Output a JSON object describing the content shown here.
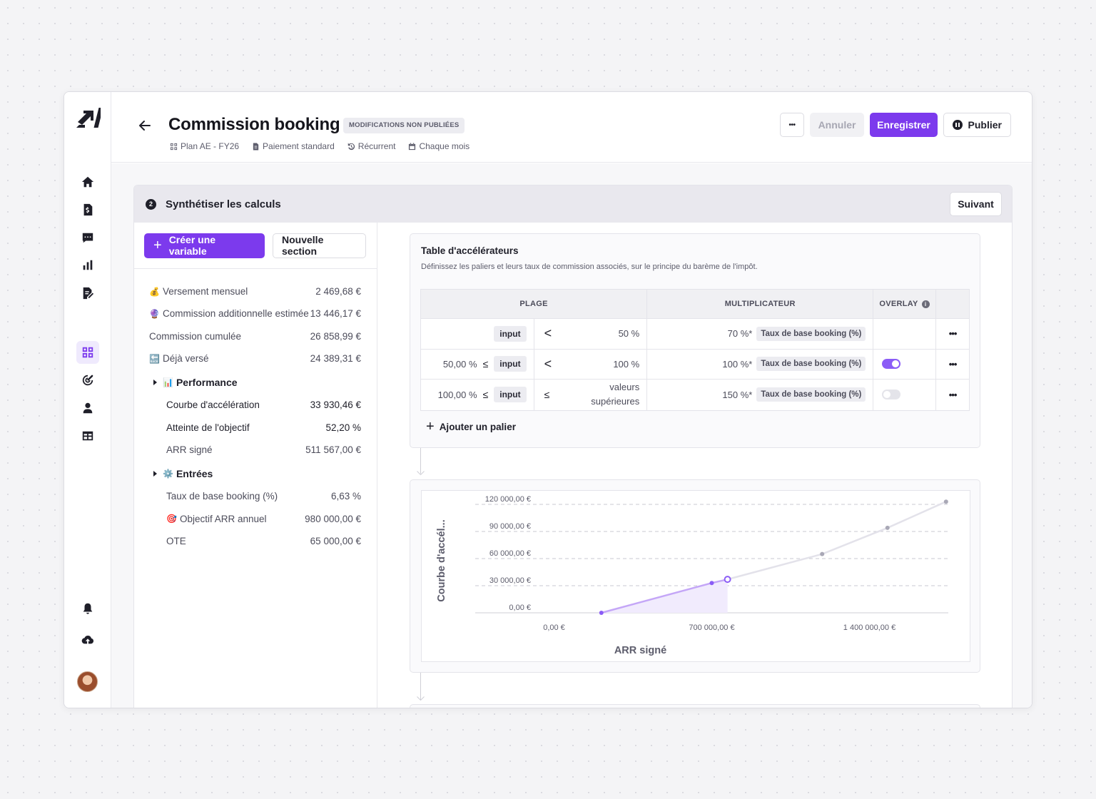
{
  "header": {
    "title": "Commission booking",
    "badge": "MODIFICATIONS NON PUBLIÉES",
    "meta": [
      "Plan AE - FY26",
      "Paiement standard",
      "Récurrent",
      "Chaque mois"
    ],
    "actions": {
      "more": "•••",
      "cancel": "Annuler",
      "save": "Enregistrer",
      "publish": "Publier"
    }
  },
  "sidebar": {
    "icons": [
      "home-icon",
      "invoice-dollar-icon",
      "chat-icon",
      "bar-chart-icon",
      "file-edit-icon",
      "dashboard-grid-icon",
      "target-icon",
      "user-icon",
      "table-icon",
      "bell-icon",
      "cloud-upload-icon"
    ],
    "active": "dashboard-grid-icon",
    "accent": "#7c3aed"
  },
  "step": {
    "number": "2",
    "title": "Synthétiser les calculs",
    "next": "Suivant"
  },
  "left_panel": {
    "create_variable": "Créer une variable",
    "new_section": "Nouvelle section",
    "variables": [
      {
        "emoji": "💰",
        "label": "Versement mensuel",
        "value": "2 469,68 €"
      },
      {
        "emoji": "🔮",
        "label": "Commission additionnelle estimée",
        "value": "13 446,17 €"
      },
      {
        "emoji": "",
        "label": "Commission cumulée",
        "value": "26 858,99 €"
      },
      {
        "emoji": "🔙",
        "label": "Déjà versé",
        "value": "24 389,31 €"
      }
    ],
    "groups": [
      {
        "emoji": "📊",
        "label": "Performance",
        "items": [
          {
            "emoji": "",
            "label": "Courbe d'accélération",
            "value": "33 930,46 €",
            "dark": true
          },
          {
            "emoji": "",
            "label": "Atteinte de l'objectif",
            "value": "52,20 %",
            "dark": true
          },
          {
            "emoji": "",
            "label": "ARR signé",
            "value": "511 567,00 €",
            "dark": false
          }
        ]
      },
      {
        "emoji": "⚙️",
        "label": "Entrées",
        "items": [
          {
            "emoji": "",
            "label": "Taux de base booking (%)",
            "value": "6,63 %",
            "dark": false
          },
          {
            "emoji": "🎯",
            "label": "Objectif ARR annuel",
            "value": "980 000,00 €",
            "dark": false
          },
          {
            "emoji": "",
            "label": "OTE",
            "value": "65 000,00 €",
            "dark": false
          }
        ]
      }
    ]
  },
  "accelerators": {
    "title": "Table d'accélérateurs",
    "description": "Définissez les paliers et leurs taux de commission associés, sur le principe du barème de l'impôt.",
    "columns": [
      "PLAGE",
      "MULTIPLICATEUR",
      "OVERLAY"
    ],
    "rows": [
      {
        "low": "",
        "low_op": "",
        "input": "input",
        "high_op": "<",
        "high": "50 %",
        "mult": "70 %*",
        "var": "Taux de base booking (%)",
        "overlay": null
      },
      {
        "low": "50,00 %",
        "low_op": "≤",
        "input": "input",
        "high_op": "<",
        "high": "100 %",
        "mult": "100 %*",
        "var": "Taux de base booking (%)",
        "overlay": true
      },
      {
        "low": "100,00 %",
        "low_op": "≤",
        "input": "input",
        "high_op": "≤",
        "high": "valeurs supérieures",
        "mult": "150 %*",
        "var": "Taux de base booking (%)",
        "overlay": false
      }
    ],
    "row_menu": "•••",
    "add_tier": "Ajouter un palier"
  },
  "chart_data": {
    "type": "line",
    "xlabel": "ARR signé",
    "ylabel": "Courbe d'accél...",
    "x_ticks": [
      "0,00 €",
      "700 000,00 €",
      "1 400 000,00 €"
    ],
    "x_tick_values": [
      0,
      700000,
      1400000
    ],
    "y_ticks": [
      "0,00 €",
      "30 000,00 €",
      "60 000,00 €",
      "90 000,00 €",
      "120 000,00 €"
    ],
    "y_tick_values": [
      0,
      30000,
      60000,
      90000,
      120000
    ],
    "xlim": [
      -350000,
      1750000
    ],
    "ylim": [
      0,
      120000
    ],
    "grid": "horizontal dashed",
    "series": [
      {
        "x": [
          210000,
          700000,
          1190000,
          1480000,
          1740000
        ],
        "y": [
          0,
          33000,
          65000,
          94000,
          123000
        ]
      }
    ],
    "current_point": {
      "x": 770000,
      "y": 37000
    },
    "colors": {
      "active": "#c4a6f7",
      "inactive": "#e3e2ea",
      "fill": "#f1ebfd",
      "point": "#8b5cf6"
    }
  }
}
